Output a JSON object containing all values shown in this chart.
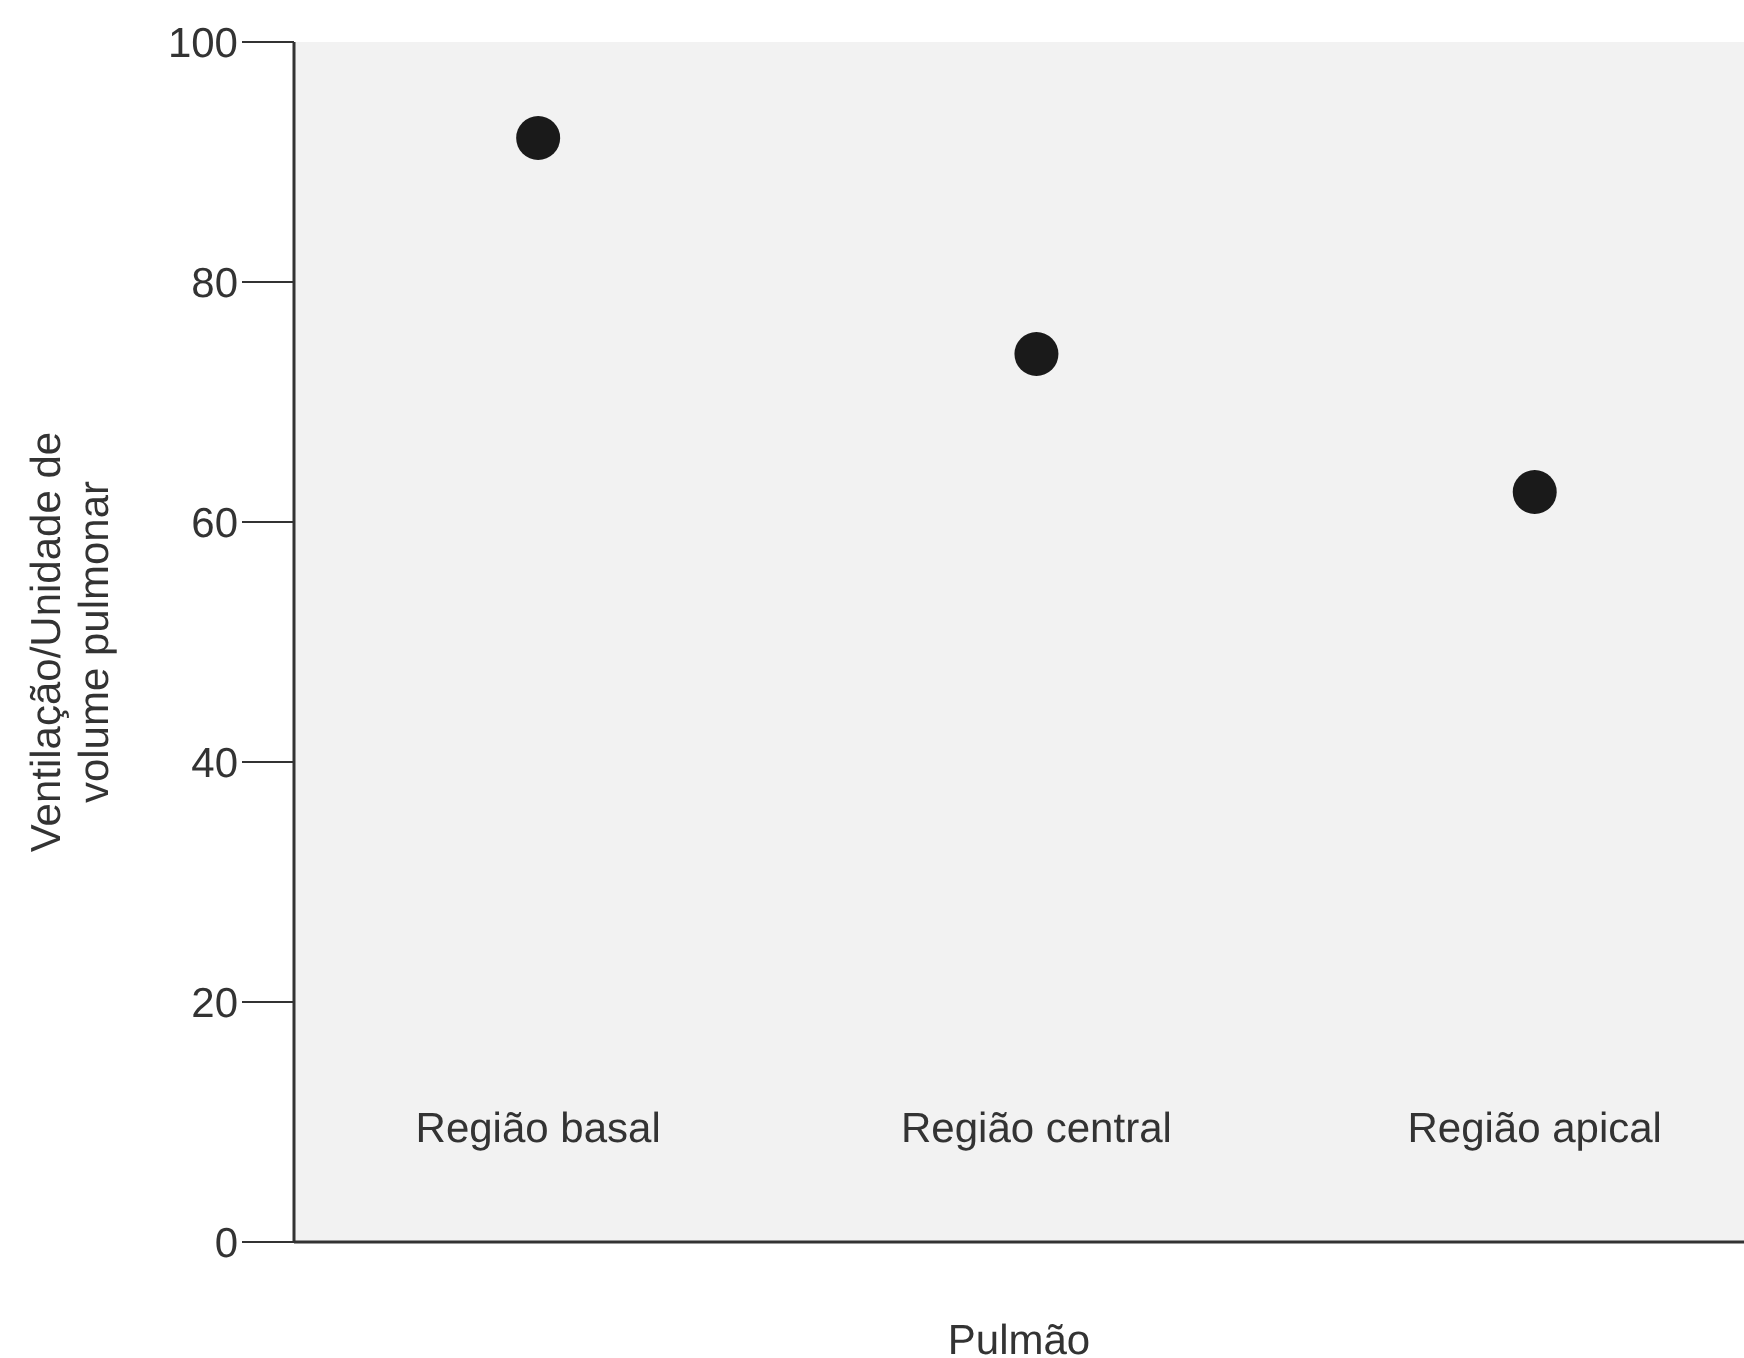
{
  "chart_data": {
    "type": "scatter",
    "xlabel": "Pulmão",
    "ylabel": "Ventilação/Unidade de volume pulmonar",
    "categories": [
      "Região basal",
      "Região central",
      "Região apical"
    ],
    "series": [
      {
        "color": "#1a1a1a",
        "values": [
          92,
          74,
          62.5
        ]
      }
    ],
    "ylim": [
      0,
      100
    ],
    "yticks": [
      0,
      20,
      40,
      60,
      80,
      100
    ],
    "marker": "circle"
  }
}
